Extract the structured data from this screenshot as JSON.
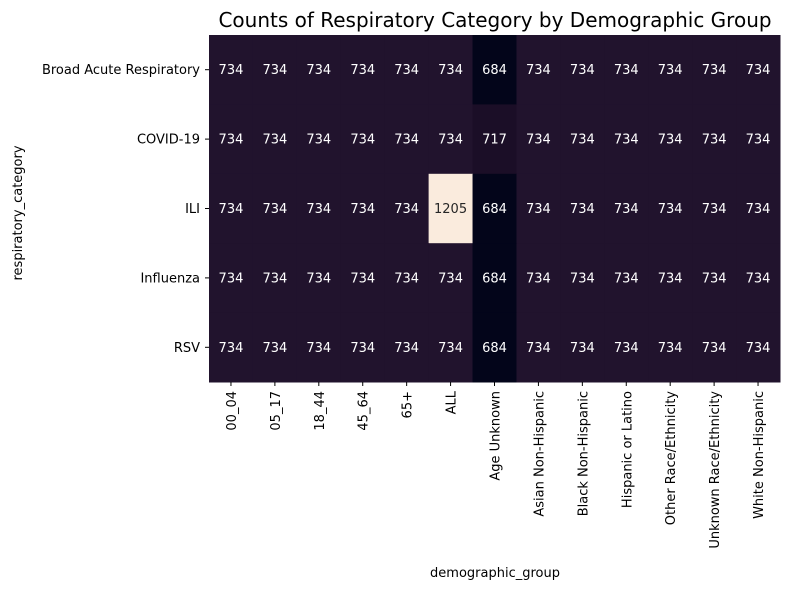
{
  "chart_data": {
    "type": "heatmap",
    "title": "Counts of Respiratory Category by Demographic Group",
    "xlabel": "demographic_group",
    "ylabel": "respiratory_category",
    "x_categories": [
      "00_04",
      "05_17",
      "18_44",
      "45_64",
      "65+",
      "ALL",
      "Age Unknown",
      "Asian Non-Hispanic",
      "Black Non-Hispanic",
      "Hispanic or Latino",
      "Other Race/Ethnicity",
      "Unknown Race/Ethnicity",
      "White Non-Hispanic"
    ],
    "y_categories": [
      "Broad Acute Respiratory",
      "COVID-19",
      "ILI",
      "Influenza",
      "RSV"
    ],
    "values": [
      [
        734,
        734,
        734,
        734,
        734,
        734,
        684,
        734,
        734,
        734,
        734,
        734,
        734
      ],
      [
        734,
        734,
        734,
        734,
        734,
        734,
        717,
        734,
        734,
        734,
        734,
        734,
        734
      ],
      [
        734,
        734,
        734,
        734,
        734,
        1205,
        684,
        734,
        734,
        734,
        734,
        734,
        734
      ],
      [
        734,
        734,
        734,
        734,
        734,
        734,
        684,
        734,
        734,
        734,
        734,
        734,
        734
      ],
      [
        734,
        734,
        734,
        734,
        734,
        734,
        684,
        734,
        734,
        734,
        734,
        734,
        734
      ]
    ],
    "colorbar": false,
    "colormap": "rocket",
    "annotated": true
  }
}
